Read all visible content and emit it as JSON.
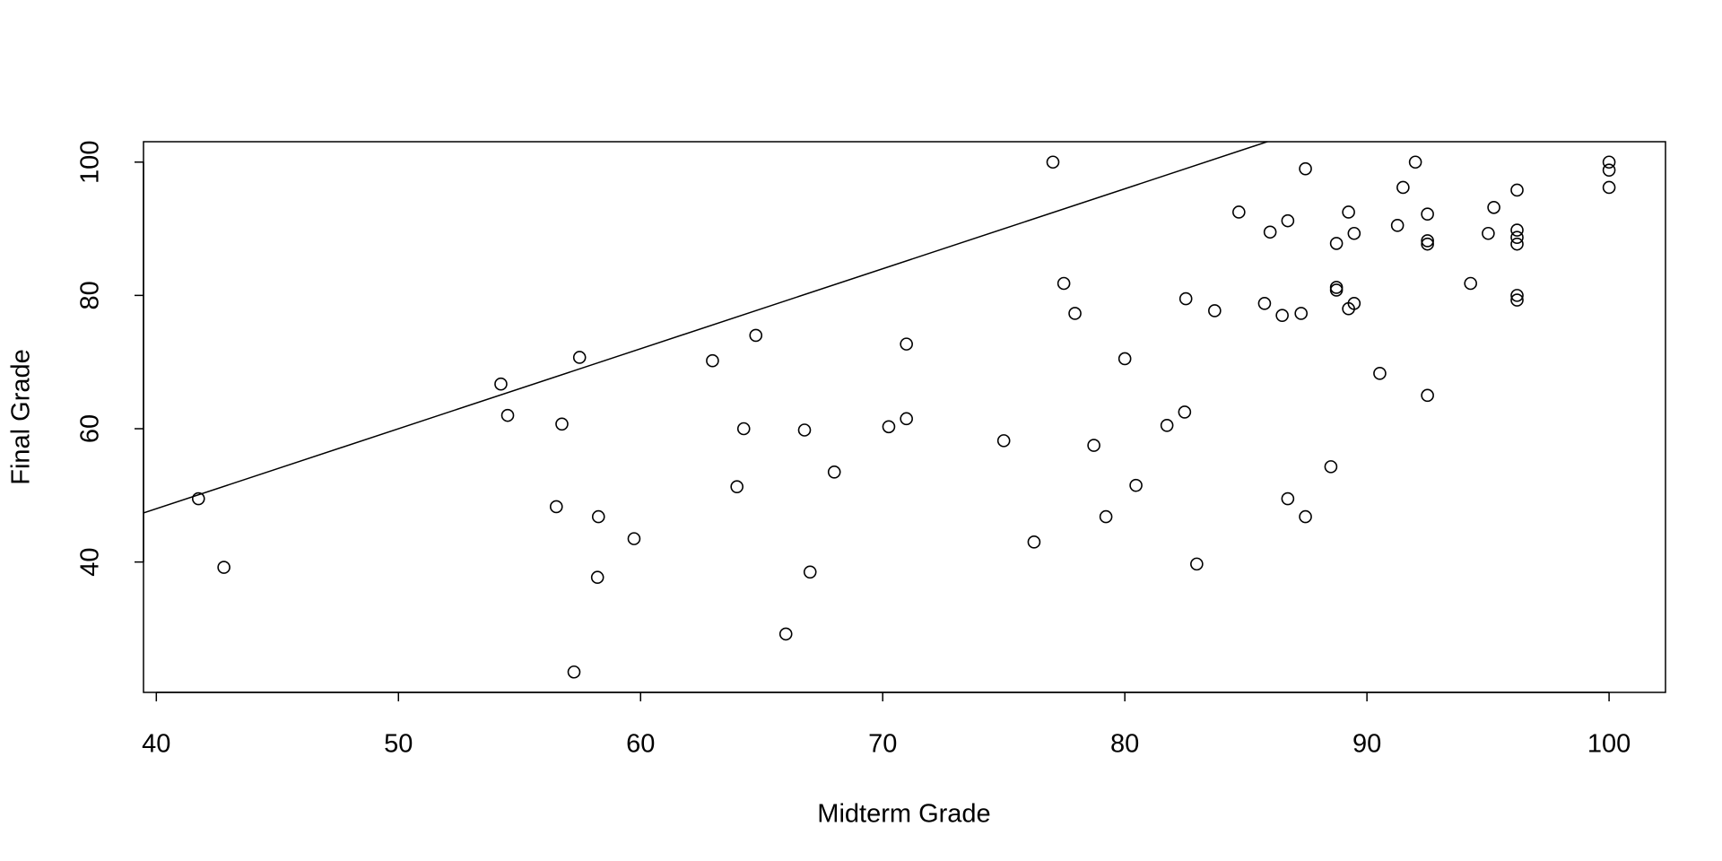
{
  "chart_data": {
    "type": "scatter",
    "x_label": "Midterm Grade",
    "y_label": "Final Grade",
    "xlim": [
      39.47,
      102.33
    ],
    "ylim": [
      20.44,
      103.06
    ],
    "xticks": [
      40,
      50,
      60,
      70,
      80,
      90,
      100
    ],
    "yticks": [
      40,
      60,
      80,
      100
    ],
    "color": "#000000",
    "line": {
      "intercept": 0,
      "slope": 1.2
    },
    "x": [
      41.74,
      42.79,
      54.23,
      54.51,
      57.48,
      56.75,
      56.52,
      58.26,
      58.22,
      57.25,
      59.73,
      62.97,
      64.76,
      64.26,
      63.98,
      66.0,
      66.77,
      67.0,
      68.0,
      70.25,
      70.98,
      70.98,
      75.0,
      76.25,
      77.03,
      77.48,
      77.94,
      78.72,
      79.22,
      80.0,
      80.46,
      81.74,
      82.47,
      82.52,
      82.97,
      83.71,
      84.71,
      85.77,
      86.0,
      86.5,
      86.73,
      86.73,
      87.28,
      87.46,
      87.46,
      88.51,
      88.74,
      88.74,
      88.74,
      89.24,
      89.24,
      89.47,
      89.47,
      90.53,
      91.26,
      91.49,
      92.0,
      92.5,
      92.5,
      92.5,
      92.5,
      94.28,
      95.01,
      95.24,
      96.2,
      96.2,
      96.2,
      96.2,
      96.2,
      96.2,
      100,
      100,
      100
    ],
    "y": [
      49.5,
      39.2,
      66.7,
      62,
      70.7,
      60.7,
      48.3,
      46.8,
      37.7,
      23.5,
      43.5,
      70.2,
      74,
      60,
      51.3,
      29.2,
      59.8,
      38.5,
      53.5,
      60.3,
      61.5,
      72.7,
      58.2,
      43,
      100,
      81.8,
      77.3,
      57.5,
      46.8,
      70.5,
      51.5,
      60.5,
      62.5,
      79.5,
      39.7,
      77.7,
      92.5,
      78.8,
      89.5,
      77,
      91.2,
      49.5,
      77.3,
      99,
      46.8,
      54.3,
      87.8,
      81.2,
      80.8,
      78,
      92.5,
      89.3,
      78.8,
      68.3,
      90.5,
      96.2,
      100,
      92.2,
      88.2,
      87.7,
      65,
      81.8,
      89.3,
      93.2,
      95.8,
      89.8,
      88.7,
      87.7,
      80,
      79.3,
      100,
      98.8,
      96.2
    ]
  }
}
